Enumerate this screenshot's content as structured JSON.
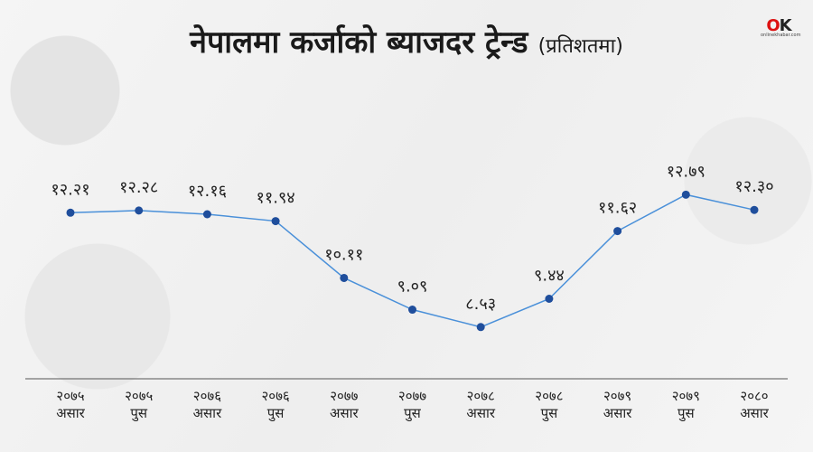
{
  "title": "नेपालमा कर्जाको ब्याजदर ट्रेन्ड",
  "subtitle": "(प्रतिशतमा)",
  "logo": {
    "mark": "OK",
    "text": "onlinekhabar.com"
  },
  "colors": {
    "line": "#4a90d9",
    "point": "#1f4e9c",
    "axis": "#555555"
  },
  "chart_data": {
    "type": "line",
    "categories": [
      [
        "२०७५",
        "असार"
      ],
      [
        "२०७५",
        "पुस"
      ],
      [
        "२०७६",
        "असार"
      ],
      [
        "२०७६",
        "पुस"
      ],
      [
        "२०७७",
        "असार"
      ],
      [
        "२०७७",
        "पुस"
      ],
      [
        "२०७८",
        "असार"
      ],
      [
        "२०७८",
        "पुस"
      ],
      [
        "२०७९",
        "असार"
      ],
      [
        "२०७९",
        "पुस"
      ],
      [
        "२०८०",
        "असार"
      ]
    ],
    "values": [
      12.21,
      12.28,
      12.16,
      11.94,
      10.11,
      9.09,
      8.53,
      9.44,
      11.62,
      12.79,
      12.3
    ],
    "value_labels": [
      "१२.२१",
      "१२.२८",
      "१२.१६",
      "११.९४",
      "१०.११",
      "९.०९",
      "८.५३",
      "९.४४",
      "११.६२",
      "१२.७९",
      "१२.३०"
    ],
    "ylim": [
      0,
      16
    ],
    "grid": false
  }
}
